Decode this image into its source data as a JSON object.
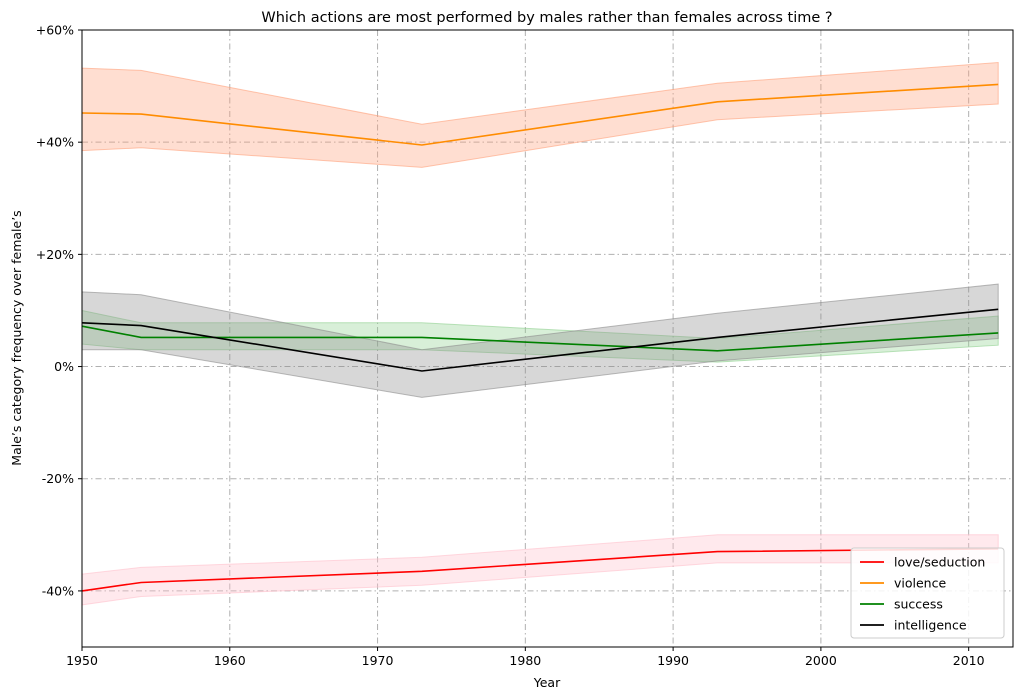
{
  "chart_data": {
    "type": "line",
    "title": "Which actions are most performed by males rather than females across time ?",
    "xlabel": "Year",
    "ylabel": "Male’s category frequency over female’s",
    "xlim": [
      1950,
      2013
    ],
    "ylim": [
      -50,
      60
    ],
    "xticks": [
      1950,
      1960,
      1970,
      1980,
      1990,
      2000,
      2010
    ],
    "xtick_labels": [
      "1950",
      "1960",
      "1970",
      "1980",
      "1990",
      "2000",
      "2010"
    ],
    "yticks": [
      -40,
      -20,
      0,
      20,
      40,
      60
    ],
    "ytick_labels": [
      "-40%",
      "-20%",
      "0%",
      "+20%",
      "+40%",
      "+60%"
    ],
    "grid": true,
    "legend_position": "bottom-right",
    "series": [
      {
        "name": "love/seduction",
        "color": "#ff0000",
        "band_color": "#ffc0cb",
        "x": [
          1950,
          1954,
          1973,
          1993,
          2012
        ],
        "y": [
          -40.0,
          -38.5,
          -36.5,
          -33.0,
          -32.5
        ],
        "lower": [
          -42.5,
          -41.0,
          -39.0,
          -35.0,
          -35.0
        ],
        "upper": [
          -37.0,
          -35.8,
          -34.0,
          -30.0,
          -30.0
        ]
      },
      {
        "name": "violence",
        "color": "#ff8c00",
        "band_color": "#ffa07a",
        "x": [
          1950,
          1954,
          1973,
          1993,
          2012
        ],
        "y": [
          45.2,
          45.0,
          39.5,
          47.2,
          50.3
        ],
        "lower": [
          38.5,
          39.0,
          35.5,
          44.0,
          46.8
        ],
        "upper": [
          53.2,
          52.8,
          43.2,
          50.5,
          54.2
        ]
      },
      {
        "name": "success",
        "color": "#008000",
        "band_color": "#90d090",
        "x": [
          1950,
          1954,
          1973,
          1993,
          2012
        ],
        "y": [
          7.2,
          5.2,
          5.2,
          2.8,
          6.0
        ],
        "lower": [
          4.0,
          3.0,
          3.0,
          0.8,
          3.8
        ],
        "upper": [
          10.0,
          7.8,
          7.8,
          5.0,
          9.0
        ]
      },
      {
        "name": "intelligence",
        "color": "#000000",
        "band_color": "#8c8c8c",
        "x": [
          1950,
          1954,
          1973,
          1993,
          2012
        ],
        "y": [
          7.8,
          7.3,
          -0.8,
          5.2,
          10.2
        ],
        "lower": [
          3.0,
          3.0,
          -5.5,
          1.0,
          5.0
        ],
        "upper": [
          13.3,
          12.8,
          3.0,
          9.5,
          14.7
        ]
      }
    ]
  }
}
